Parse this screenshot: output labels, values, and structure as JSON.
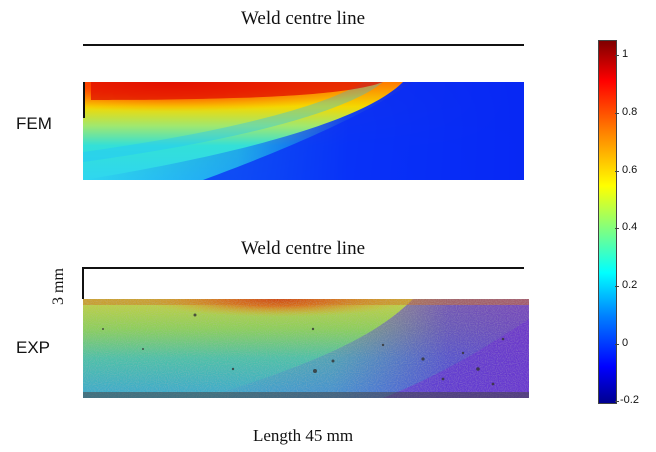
{
  "top_panel": {
    "title": "Weld centre line",
    "label": "FEM"
  },
  "bottom_panel": {
    "title": "Weld centre line",
    "label": "EXP",
    "scale_label": "3 mm"
  },
  "x_caption": "Length 45 mm",
  "colorbar": {
    "min": -0.2,
    "max": 1,
    "ticks": [
      "1",
      "0.8",
      "0.6",
      "0.4",
      "0.2",
      "0",
      "-0.2"
    ],
    "colors": [
      "#7f0000",
      "#ff0000",
      "#ff8000",
      "#ffff00",
      "#80ff80",
      "#00ffff",
      "#0080ff",
      "#0000ff",
      "#00008f"
    ]
  }
}
